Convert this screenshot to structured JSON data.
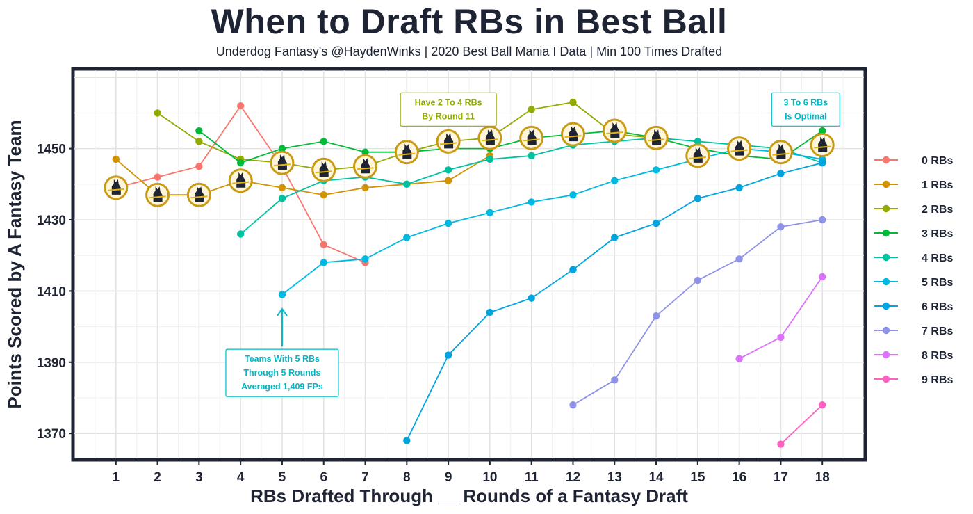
{
  "title": "When to Draft RBs in Best Ball",
  "subtitle": "Underdog Fantasy's @HaydenWinks | 2020 Best Ball Mania I Data | Min 100 Times Drafted",
  "chart_data": {
    "type": "line",
    "xlabel": "RBs Drafted Through __ Rounds of a Fantasy Draft",
    "ylabel": "Points Scored by A Fantasy Team",
    "xlim": [
      0,
      19
    ],
    "ylim": [
      1363,
      1472
    ],
    "x_ticks": [
      1,
      2,
      3,
      4,
      5,
      6,
      7,
      8,
      9,
      10,
      11,
      12,
      13,
      14,
      15,
      16,
      17,
      18
    ],
    "y_ticks": [
      1370,
      1390,
      1410,
      1430,
      1450
    ],
    "grid": true,
    "legend_position": "right",
    "series": [
      {
        "name": "0 RBs",
        "color": "#F8766D",
        "points": [
          [
            1,
            1439
          ],
          [
            2,
            1442
          ],
          [
            3,
            1445
          ],
          [
            4,
            1462
          ],
          [
            5,
            1445
          ],
          [
            6,
            1423
          ],
          [
            7,
            1418
          ]
        ]
      },
      {
        "name": "1 RBs",
        "color": "#D39200",
        "points": [
          [
            1,
            1447
          ],
          [
            2,
            1437
          ],
          [
            3,
            1437
          ],
          [
            4,
            1441
          ],
          [
            5,
            1439
          ],
          [
            6,
            1437
          ],
          [
            7,
            1439
          ],
          [
            8,
            1440
          ],
          [
            9,
            1441
          ],
          [
            10,
            1448
          ]
        ]
      },
      {
        "name": "2 RBs",
        "color": "#93AA00",
        "points": [
          [
            2,
            1460
          ],
          [
            3,
            1452
          ],
          [
            4,
            1447
          ],
          [
            5,
            1446
          ],
          [
            6,
            1444
          ],
          [
            7,
            1445
          ],
          [
            8,
            1449
          ],
          [
            9,
            1452
          ],
          [
            10,
            1453
          ],
          [
            11,
            1461
          ],
          [
            12,
            1463
          ],
          [
            13,
            1454
          ],
          [
            14,
            1453
          ]
        ]
      },
      {
        "name": "3 RBs",
        "color": "#00BA38",
        "points": [
          [
            3,
            1455
          ],
          [
            4,
            1446
          ],
          [
            5,
            1450
          ],
          [
            6,
            1452
          ],
          [
            7,
            1449
          ],
          [
            8,
            1449
          ],
          [
            9,
            1450
          ],
          [
            10,
            1450
          ],
          [
            11,
            1453
          ],
          [
            12,
            1454
          ],
          [
            13,
            1455
          ],
          [
            14,
            1453
          ],
          [
            15,
            1450
          ],
          [
            16,
            1448
          ],
          [
            17,
            1447
          ],
          [
            18,
            1455
          ]
        ]
      },
      {
        "name": "4 RBs",
        "color": "#00C19F",
        "points": [
          [
            4,
            1426
          ],
          [
            5,
            1436
          ],
          [
            6,
            1441
          ],
          [
            7,
            1442
          ],
          [
            8,
            1440
          ],
          [
            9,
            1444
          ],
          [
            10,
            1447
          ],
          [
            11,
            1448
          ],
          [
            12,
            1451
          ],
          [
            13,
            1452
          ],
          [
            14,
            1453
          ],
          [
            15,
            1452
          ],
          [
            16,
            1451
          ],
          [
            17,
            1450
          ],
          [
            18,
            1446
          ]
        ]
      },
      {
        "name": "5 RBs",
        "color": "#00B9E3",
        "points": [
          [
            5,
            1409
          ],
          [
            6,
            1418
          ],
          [
            7,
            1419
          ],
          [
            8,
            1425
          ],
          [
            9,
            1429
          ],
          [
            10,
            1432
          ],
          [
            11,
            1435
          ],
          [
            12,
            1437
          ],
          [
            13,
            1441
          ],
          [
            14,
            1444
          ],
          [
            15,
            1447
          ],
          [
            16,
            1450
          ],
          [
            17,
            1449
          ],
          [
            18,
            1447
          ]
        ]
      },
      {
        "name": "6 RBs",
        "color": "#00A5E0",
        "points": [
          [
            8,
            1368
          ],
          [
            9,
            1392
          ],
          [
            10,
            1404
          ],
          [
            11,
            1408
          ],
          [
            12,
            1416
          ],
          [
            13,
            1425
          ],
          [
            14,
            1429
          ],
          [
            15,
            1436
          ],
          [
            16,
            1439
          ],
          [
            17,
            1443
          ],
          [
            18,
            1446
          ]
        ]
      },
      {
        "name": "7 RBs",
        "color": "#8F93E8",
        "points": [
          [
            12,
            1378
          ],
          [
            13,
            1385
          ],
          [
            14,
            1403
          ],
          [
            15,
            1413
          ],
          [
            16,
            1419
          ],
          [
            17,
            1428
          ],
          [
            18,
            1430
          ]
        ]
      },
      {
        "name": "8 RBs",
        "color": "#DB72FB",
        "points": [
          [
            16,
            1391
          ],
          [
            17,
            1397
          ],
          [
            18,
            1414
          ]
        ]
      },
      {
        "name": "9 RBs",
        "color": "#FF61C3",
        "points": [
          [
            17,
            1367
          ],
          [
            18,
            1378
          ]
        ]
      }
    ],
    "logo_markers": [
      [
        1,
        1439
      ],
      [
        2,
        1437
      ],
      [
        3,
        1437
      ],
      [
        4,
        1441
      ],
      [
        5,
        1446
      ],
      [
        6,
        1444
      ],
      [
        7,
        1445
      ],
      [
        8,
        1449
      ],
      [
        9,
        1452
      ],
      [
        10,
        1453
      ],
      [
        11,
        1453
      ],
      [
        12,
        1454
      ],
      [
        13,
        1455
      ],
      [
        14,
        1453
      ],
      [
        15,
        1448
      ],
      [
        16,
        1450
      ],
      [
        17,
        1449
      ],
      [
        18,
        1451
      ]
    ],
    "annotations": [
      {
        "lines": [
          "Have 2 To 4 RBs",
          "By Round 11"
        ],
        "color": "#93AA00",
        "at": [
          9.0,
          1461
        ]
      },
      {
        "lines": [
          "3 To 6 RBs",
          "Is Optimal"
        ],
        "color": "#00B9C6",
        "at": [
          17.6,
          1461
        ]
      },
      {
        "lines": [
          "Teams With 5 RBs",
          "Through 5 Rounds",
          "Averaged 1,409 FPs"
        ],
        "color": "#00B9C6",
        "at": [
          5,
          1387
        ],
        "arrow_from": [
          5,
          1396
        ],
        "arrow_to": [
          5,
          1405
        ]
      }
    ]
  }
}
